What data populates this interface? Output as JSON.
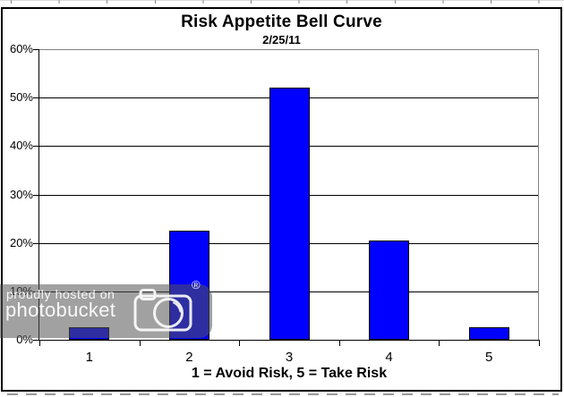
{
  "watermark": {
    "line1": "proudly hosted on",
    "line2": "photobucket",
    "registered_symbol": "®",
    "overlay_color": "rgba(84,84,84,0.55)",
    "text_color": "#ffffff"
  },
  "chart_data": {
    "type": "bar",
    "title": "Risk Appetite Bell Curve",
    "subtitle": "2/25/11",
    "categories": [
      "1",
      "2",
      "3",
      "4",
      "5"
    ],
    "values": [
      2.5,
      22.5,
      52.0,
      20.5,
      2.5
    ],
    "xlabel": "1 = Avoid Risk, 5 = Take Risk",
    "ylabel": "",
    "ylim": [
      0,
      60
    ],
    "y_ticks": [
      {
        "value": 60,
        "label": "60%"
      },
      {
        "value": 50,
        "label": "50%"
      },
      {
        "value": 40,
        "label": "40%"
      },
      {
        "value": 30,
        "label": "30%"
      },
      {
        "value": 20,
        "label": "20%"
      },
      {
        "value": 10,
        "label": "10%"
      },
      {
        "value": 0,
        "label": "0%"
      }
    ],
    "grid": true,
    "legend": false,
    "bar_color": "#0000ff",
    "bar_border_color": "#000000",
    "plot_border_color": "#808080",
    "gridline_color": "#000000",
    "axis_color": "#000000"
  }
}
